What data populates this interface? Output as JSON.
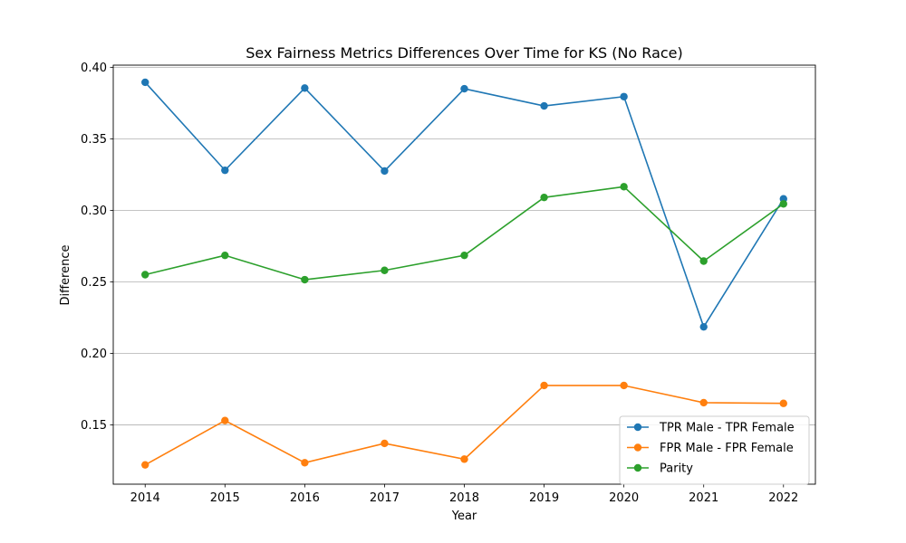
{
  "chart_data": {
    "type": "line",
    "title": "Sex Fairness Metrics Differences Over Time for KS (No Race)",
    "xlabel": "Year",
    "ylabel": "Difference",
    "x": [
      2014,
      2015,
      2016,
      2017,
      2018,
      2019,
      2020,
      2021,
      2022
    ],
    "x_tick_labels": [
      "2014",
      "2015",
      "2016",
      "2017",
      "2018",
      "2019",
      "2020",
      "2021",
      "2022"
    ],
    "xlim": [
      2013.6,
      2022.4
    ],
    "ylim": [
      0.1085,
      0.4015
    ],
    "y_ticks": [
      0.15,
      0.2,
      0.25,
      0.3,
      0.35,
      0.4
    ],
    "y_tick_labels": [
      "0.15",
      "0.20",
      "0.25",
      "0.30",
      "0.35",
      "0.40"
    ],
    "grid": "horizontal",
    "legend_position": "lower-right",
    "series": [
      {
        "name": "TPR Male - TPR Female",
        "color": "#1f77b4",
        "values": [
          0.3895,
          0.328,
          0.3855,
          0.3275,
          0.385,
          0.373,
          0.3795,
          0.2185,
          0.308
        ]
      },
      {
        "name": "FPR Male - FPR Female",
        "color": "#ff7f0e",
        "values": [
          0.122,
          0.153,
          0.1235,
          0.137,
          0.126,
          0.1775,
          0.1775,
          0.1655,
          0.165
        ]
      },
      {
        "name": "Parity",
        "color": "#2ca02c",
        "values": [
          0.255,
          0.2685,
          0.2515,
          0.258,
          0.2685,
          0.309,
          0.3165,
          0.2645,
          0.3045
        ]
      }
    ]
  }
}
